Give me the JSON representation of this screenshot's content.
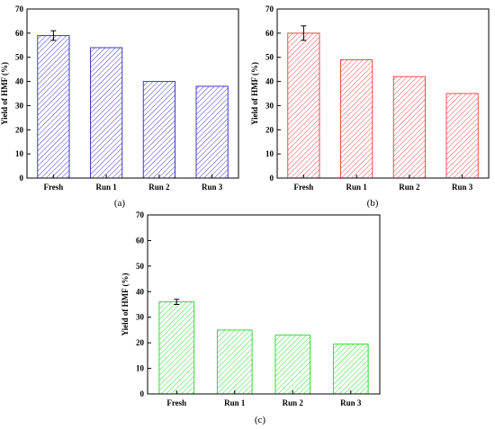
{
  "chart_data": [
    {
      "type": "bar",
      "panel_label": "(a)",
      "categories": [
        "Fresh",
        "Run 1",
        "Run 2",
        "Run 3"
      ],
      "values": [
        59,
        54,
        40,
        38
      ],
      "error": [
        2,
        0,
        0,
        0
      ],
      "ylabel": "Yield of HMF (%)",
      "xlabel": "",
      "ylim": [
        0,
        70
      ],
      "yticks": [
        0,
        10,
        20,
        30,
        40,
        50,
        60,
        70
      ],
      "color": "#3b3bcf",
      "hatch": "diagonal"
    },
    {
      "type": "bar",
      "panel_label": "(b)",
      "categories": [
        "Fresh",
        "Run 1",
        "Run 2",
        "Run 3"
      ],
      "values": [
        60,
        49,
        42,
        35
      ],
      "error": [
        3,
        0,
        0,
        0
      ],
      "ylabel": "Yield of HMF (%)",
      "xlabel": "",
      "ylim": [
        0,
        70
      ],
      "yticks": [
        0,
        10,
        20,
        30,
        40,
        50,
        60,
        70
      ],
      "color": "#ef4b4b",
      "hatch": "diagonal"
    },
    {
      "type": "bar",
      "panel_label": "(c)",
      "categories": [
        "Fresh",
        "Run 1",
        "Run 2",
        "Run 3"
      ],
      "values": [
        36,
        25,
        23,
        19.5
      ],
      "error": [
        1,
        0,
        0,
        0
      ],
      "ylabel": "Yield of HMF (%)",
      "xlabel": "",
      "ylim": [
        0,
        70
      ],
      "yticks": [
        0,
        10,
        20,
        30,
        40,
        50,
        60,
        70
      ],
      "color": "#33dd33",
      "hatch": "diagonal"
    }
  ]
}
